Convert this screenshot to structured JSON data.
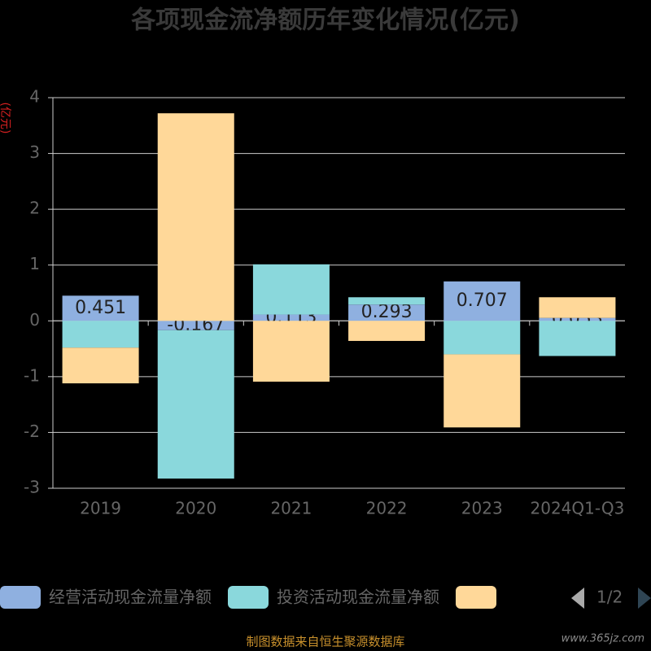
{
  "chart_data": {
    "type": "stacked-bar",
    "title": "各项现金流净额历年变化情况(亿元)",
    "y_axis_label": "(亿元)",
    "categories": [
      "2019",
      "2020",
      "2021",
      "2022",
      "2023",
      "2024Q1-Q3"
    ],
    "series": [
      {
        "name": "经营活动现金流量净额",
        "color": "#8fb0e0",
        "values": [
          0.451,
          -0.167,
          0.113,
          0.293,
          0.707,
          0.053
        ],
        "show_labels": true
      },
      {
        "name": "投资活动现金流量净额",
        "color": "#8ad8dc",
        "values": [
          -0.48,
          -2.66,
          0.9,
          0.13,
          -0.6,
          -0.63
        ]
      },
      {
        "color": "#ffd899",
        "values": [
          -0.64,
          3.72,
          -1.09,
          -0.36,
          -1.31,
          0.37
        ]
      }
    ],
    "ylim": [
      -3,
      4
    ],
    "yticks": [
      -3,
      -2,
      -1,
      0,
      1,
      2,
      3,
      4
    ],
    "grid": true,
    "legend_page": "1/2",
    "source": "制图数据来自恒生聚源数据库",
    "watermark": "www.365jz.com"
  }
}
